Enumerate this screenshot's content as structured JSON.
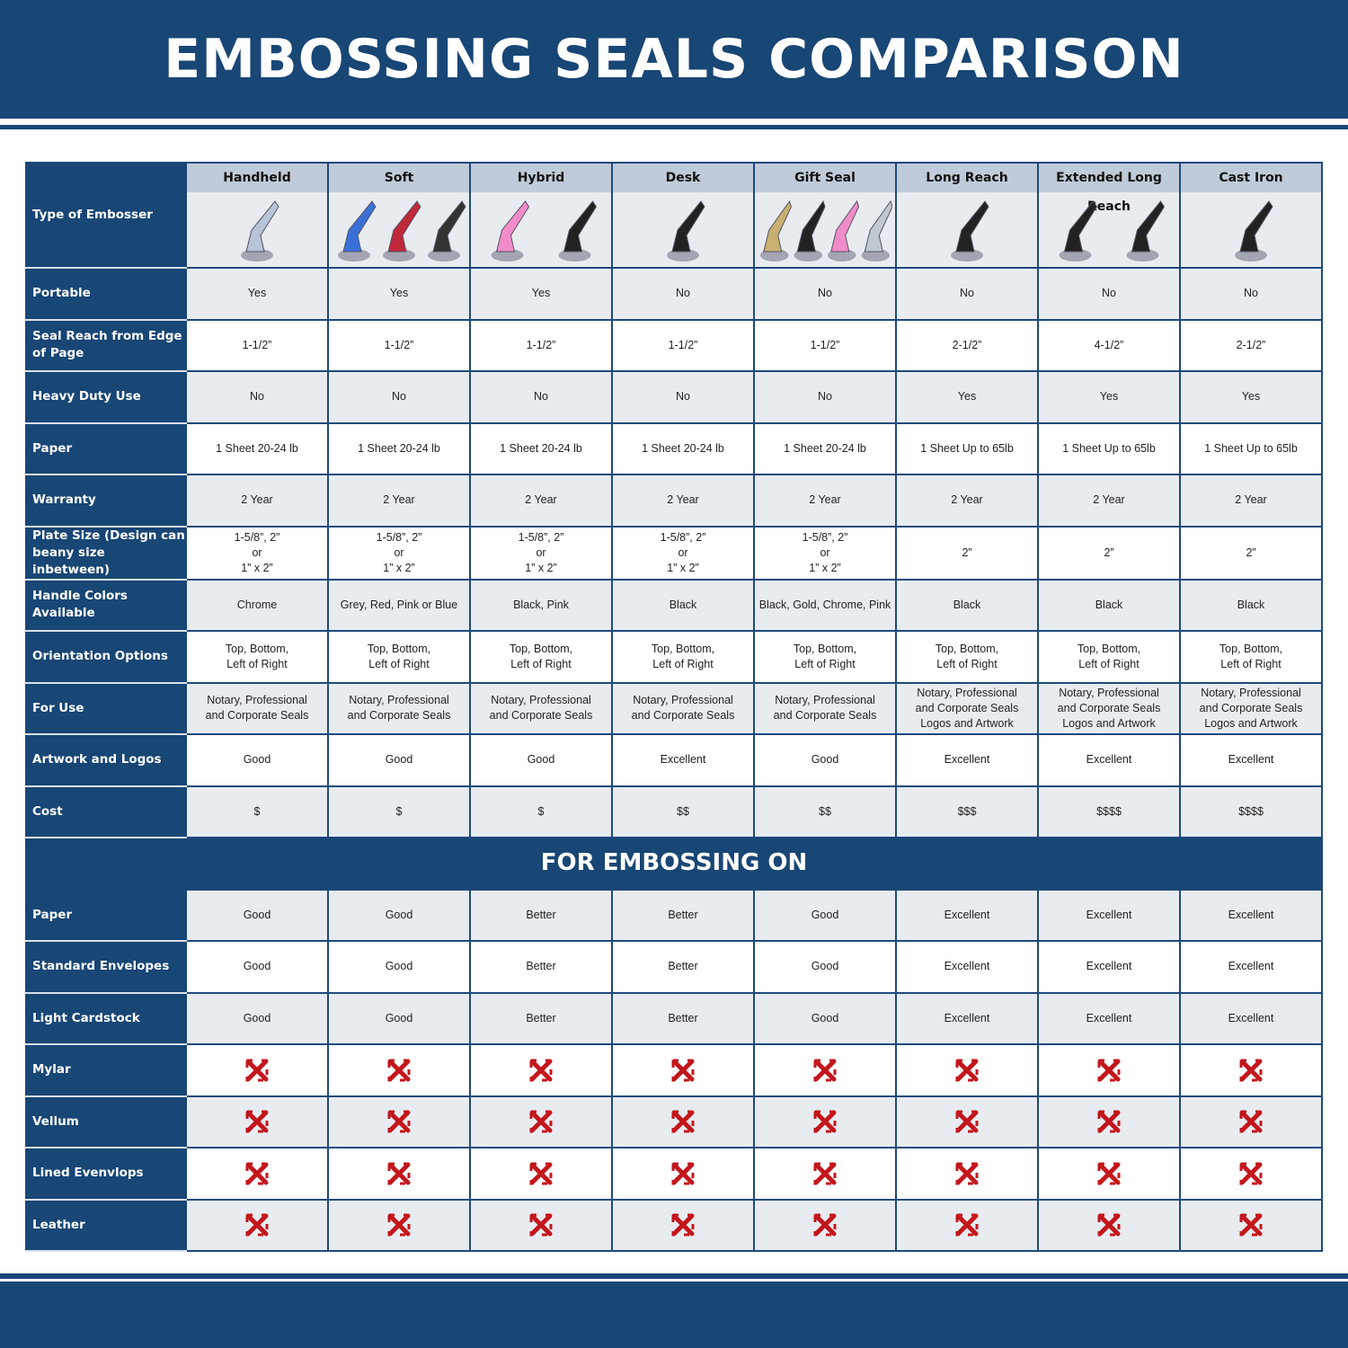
{
  "title": "EMBOSSING SEALS COMPARISON",
  "type_label": "Type of Embosser",
  "columns": [
    {
      "name": "Handheld",
      "image": "chrome-handheld-embosser",
      "colors": [
        "#b8c4d8"
      ]
    },
    {
      "name": "Soft",
      "image": "blue-red-black-soft-embossers",
      "colors": [
        "#3a6fd8",
        "#c0283c",
        "#333"
      ]
    },
    {
      "name": "Hybrid",
      "image": "pink-black-hybrid-embossers",
      "colors": [
        "#f08cc8",
        "#222"
      ]
    },
    {
      "name": "Desk",
      "image": "black-desk-embosser",
      "colors": [
        "#222"
      ]
    },
    {
      "name": "Gift Seal",
      "image": "gold-black-pink-chrome-gift-seals",
      "colors": [
        "#c8b070",
        "#222",
        "#f08cc8",
        "#c0c8d0"
      ]
    },
    {
      "name": "Long Reach",
      "image": "black-long-reach-embosser",
      "colors": [
        "#222"
      ]
    },
    {
      "name": "Extended Long Reach",
      "image": "black-extended-long-reach-embossers",
      "colors": [
        "#222",
        "#222"
      ]
    },
    {
      "name": "Cast Iron",
      "image": "black-cast-iron-embosser",
      "colors": [
        "#222"
      ]
    }
  ],
  "rows": [
    {
      "label": "Portable",
      "values": [
        "Yes",
        "Yes",
        "Yes",
        "No",
        "No",
        "No",
        "No",
        "No"
      ]
    },
    {
      "label": "Seal Reach from Edge of Page",
      "values": [
        "1-1/2”",
        "1-1/2”",
        "1-1/2”",
        "1-1/2”",
        "1-1/2”",
        "2-1/2”",
        "4-1/2”",
        "2-1/2”"
      ]
    },
    {
      "label": "Heavy Duty Use",
      "values": [
        "No",
        "No",
        "No",
        "No",
        "No",
        "Yes",
        "Yes",
        "Yes"
      ]
    },
    {
      "label": "Paper",
      "values": [
        "1 Sheet 20-24 lb",
        "1 Sheet 20-24 lb",
        "1 Sheet 20-24 lb",
        "1 Sheet 20-24 lb",
        "1 Sheet 20-24 lb",
        "1 Sheet Up to 65lb",
        "1 Sheet Up to 65lb",
        "1 Sheet Up to 65lb"
      ]
    },
    {
      "label": "Warranty",
      "values": [
        "2 Year",
        "2 Year",
        "2 Year",
        "2 Year",
        "2 Year",
        "2 Year",
        "2 Year",
        "2 Year"
      ]
    },
    {
      "label": "Plate Size (Design can beany size inbetween)",
      "values": [
        "1-5/8”, 2”\nor\n1” x 2”",
        "1-5/8”, 2”\nor\n1” x 2”",
        "1-5/8”, 2”\nor\n1” x 2”",
        "1-5/8”, 2”\nor\n1” x 2”",
        "1-5/8”, 2”\nor\n1” x 2”",
        "2”",
        "2”",
        "2”"
      ]
    },
    {
      "label": "Handle Colors Available",
      "values": [
        "Chrome",
        "Grey, Red, Pink or Blue",
        "Black, Pink",
        "Black",
        "Black, Gold, Chrome, Pink",
        "Black",
        "Black",
        "Black"
      ]
    },
    {
      "label": "Orientation Options",
      "values": [
        "Top, Bottom,\nLeft of Right",
        "Top, Bottom,\nLeft of Right",
        "Top, Bottom,\nLeft of Right",
        "Top, Bottom,\nLeft of Right",
        "Top, Bottom,\nLeft of Right",
        "Top, Bottom,\nLeft of Right",
        "Top, Bottom,\nLeft of Right",
        "Top, Bottom,\nLeft of Right"
      ]
    },
    {
      "label": "For Use",
      "values": [
        "Notary, Professional\nand Corporate Seals",
        "Notary, Professional\nand Corporate Seals",
        "Notary, Professional\nand Corporate Seals",
        "Notary, Professional\nand Corporate Seals",
        "Notary, Professional\nand Corporate Seals",
        "Notary, Professional\nand Corporate Seals\nLogos and Artwork",
        "Notary, Professional\nand Corporate Seals\nLogos and Artwork",
        "Notary, Professional\nand Corporate Seals\nLogos and Artwork"
      ]
    },
    {
      "label": "Artwork and Logos",
      "values": [
        "Good",
        "Good",
        "Good",
        "Excellent",
        "Good",
        "Excellent",
        "Excellent",
        "Excellent"
      ]
    },
    {
      "label": "Cost",
      "values": [
        "$",
        "$",
        "$",
        "$$",
        "$$",
        "$$$",
        "$$$$",
        "$$$$"
      ]
    }
  ],
  "section_title": "FOR EMBOSSING ON",
  "surfaces": [
    {
      "label": "Paper",
      "values": [
        "Good",
        "Good",
        "Better",
        "Better",
        "Good",
        "Excellent",
        "Excellent",
        "Excellent"
      ]
    },
    {
      "label": "Standard Envelopes",
      "values": [
        "Good",
        "Good",
        "Better",
        "Better",
        "Good",
        "Excellent",
        "Excellent",
        "Excellent"
      ]
    },
    {
      "label": "Light Cardstock",
      "values": [
        "Good",
        "Good",
        "Better",
        "Better",
        "Good",
        "Excellent",
        "Excellent",
        "Excellent"
      ]
    },
    {
      "label": "Mylar",
      "values": [
        "x",
        "x",
        "x",
        "x",
        "x",
        "x",
        "x",
        "x"
      ]
    },
    {
      "label": "Vellum",
      "values": [
        "x",
        "x",
        "x",
        "x",
        "x",
        "x",
        "x",
        "x"
      ]
    },
    {
      "label": "Lined Evenvlops",
      "values": [
        "x",
        "x",
        "x",
        "x",
        "x",
        "x",
        "x",
        "x"
      ]
    },
    {
      "label": "Leather",
      "values": [
        "x",
        "x",
        "x",
        "x",
        "x",
        "x",
        "x",
        "x"
      ]
    }
  ],
  "colors": {
    "brand_blue": "#184675",
    "row_gray": "#e8ecf0",
    "header_gray": "#bfcbd8",
    "x_red": "#c3161c"
  },
  "icons": {
    "not_supported": "red-x-icon"
  }
}
